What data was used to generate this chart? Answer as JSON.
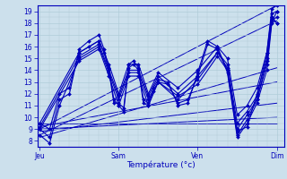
{
  "xlabel": "Température (°c)",
  "xtick_labels": [
    "Jeu",
    "Sam",
    "Ven",
    "Dim"
  ],
  "xtick_positions": [
    0,
    16,
    32,
    48
  ],
  "ylim": [
    7.5,
    19.5
  ],
  "ytick_positions": [
    8,
    9,
    10,
    11,
    12,
    13,
    14,
    15,
    16,
    17,
    18,
    19
  ],
  "xlim": [
    -0.5,
    49.5
  ],
  "bg_color": "#cce0ec",
  "grid_color": "#b0ccd8",
  "line_color": "#0000bb",
  "series": [
    [
      0,
      9.0,
      2,
      8.3,
      4,
      11.5,
      6,
      12.0,
      8,
      15.8,
      10,
      16.5,
      12,
      17.0,
      13,
      15.8,
      14,
      14.2,
      15,
      11.5,
      16,
      11.0,
      17,
      10.5,
      18,
      14.5,
      19,
      14.8,
      20,
      14.2,
      21,
      11.5,
      22,
      11.2,
      23,
      12.5,
      24,
      13.2,
      26,
      13.0,
      28,
      11.0,
      30,
      11.2,
      32,
      13.8,
      34,
      16.5,
      36,
      16.0,
      38,
      13.8,
      40,
      8.3,
      42,
      9.5,
      44,
      11.2,
      46,
      14.0,
      47,
      18.0,
      48,
      19.0
    ],
    [
      0,
      9.5,
      2,
      9.0,
      4,
      12.0,
      6,
      12.5,
      8,
      15.5,
      10,
      16.0,
      12,
      16.5,
      13,
      15.5,
      14,
      14.0,
      15,
      11.2,
      16,
      11.2,
      17,
      10.8,
      18,
      14.2,
      19,
      14.5,
      20,
      14.0,
      21,
      11.2,
      22,
      11.0,
      23,
      12.2,
      24,
      13.0,
      26,
      12.8,
      28,
      11.2,
      30,
      11.5,
      32,
      13.5,
      34,
      16.2,
      36,
      15.8,
      38,
      14.0,
      40,
      8.5,
      42,
      9.8,
      44,
      11.5,
      46,
      14.5,
      47,
      18.2,
      48,
      18.5
    ],
    [
      0,
      8.5,
      2,
      7.8,
      4,
      11.0,
      8,
      15.0,
      12,
      16.0,
      14,
      13.8,
      16,
      11.5,
      18,
      13.8,
      20,
      13.8,
      22,
      11.5,
      24,
      13.0,
      28,
      11.5,
      32,
      13.2,
      36,
      15.5,
      38,
      14.2,
      40,
      8.8,
      42,
      9.2,
      44,
      12.0,
      46,
      15.0,
      47,
      18.5,
      48,
      18.0
    ],
    [
      0,
      9.2,
      8,
      15.2,
      12,
      16.2,
      14,
      14.0,
      16,
      11.8,
      18,
      14.0,
      20,
      14.0,
      22,
      11.8,
      24,
      13.5,
      28,
      12.0,
      32,
      13.5,
      36,
      15.5,
      38,
      14.5,
      40,
      9.5,
      42,
      10.5,
      44,
      11.8,
      46,
      15.5,
      47,
      18.8,
      48,
      19.0
    ],
    [
      0,
      9.0,
      8,
      14.8,
      12,
      15.8,
      14,
      13.5,
      16,
      11.0,
      18,
      13.5,
      20,
      13.5,
      22,
      11.0,
      24,
      13.0,
      28,
      11.8,
      32,
      12.8,
      36,
      15.2,
      38,
      14.0,
      40,
      9.0,
      42,
      10.2,
      44,
      11.5,
      46,
      14.8,
      47,
      18.5,
      48,
      18.0
    ],
    [
      0,
      9.5,
      8,
      15.5,
      12,
      16.5,
      14,
      14.5,
      16,
      12.0,
      18,
      14.5,
      20,
      14.5,
      22,
      12.0,
      24,
      13.8,
      28,
      12.5,
      32,
      14.0,
      36,
      16.0,
      38,
      15.0,
      40,
      10.2,
      42,
      11.0,
      44,
      12.5,
      46,
      15.5,
      47,
      19.2,
      48,
      19.5
    ]
  ],
  "trend_lines": [
    [
      0,
      9.0,
      48,
      19.5
    ],
    [
      0,
      8.5,
      48,
      18.2
    ],
    [
      0,
      8.3,
      48,
      14.2
    ],
    [
      0,
      9.2,
      48,
      13.0
    ],
    [
      0,
      8.8,
      48,
      11.2
    ],
    [
      0,
      9.0,
      48,
      10.0
    ],
    [
      0,
      9.5,
      48,
      9.5
    ]
  ]
}
